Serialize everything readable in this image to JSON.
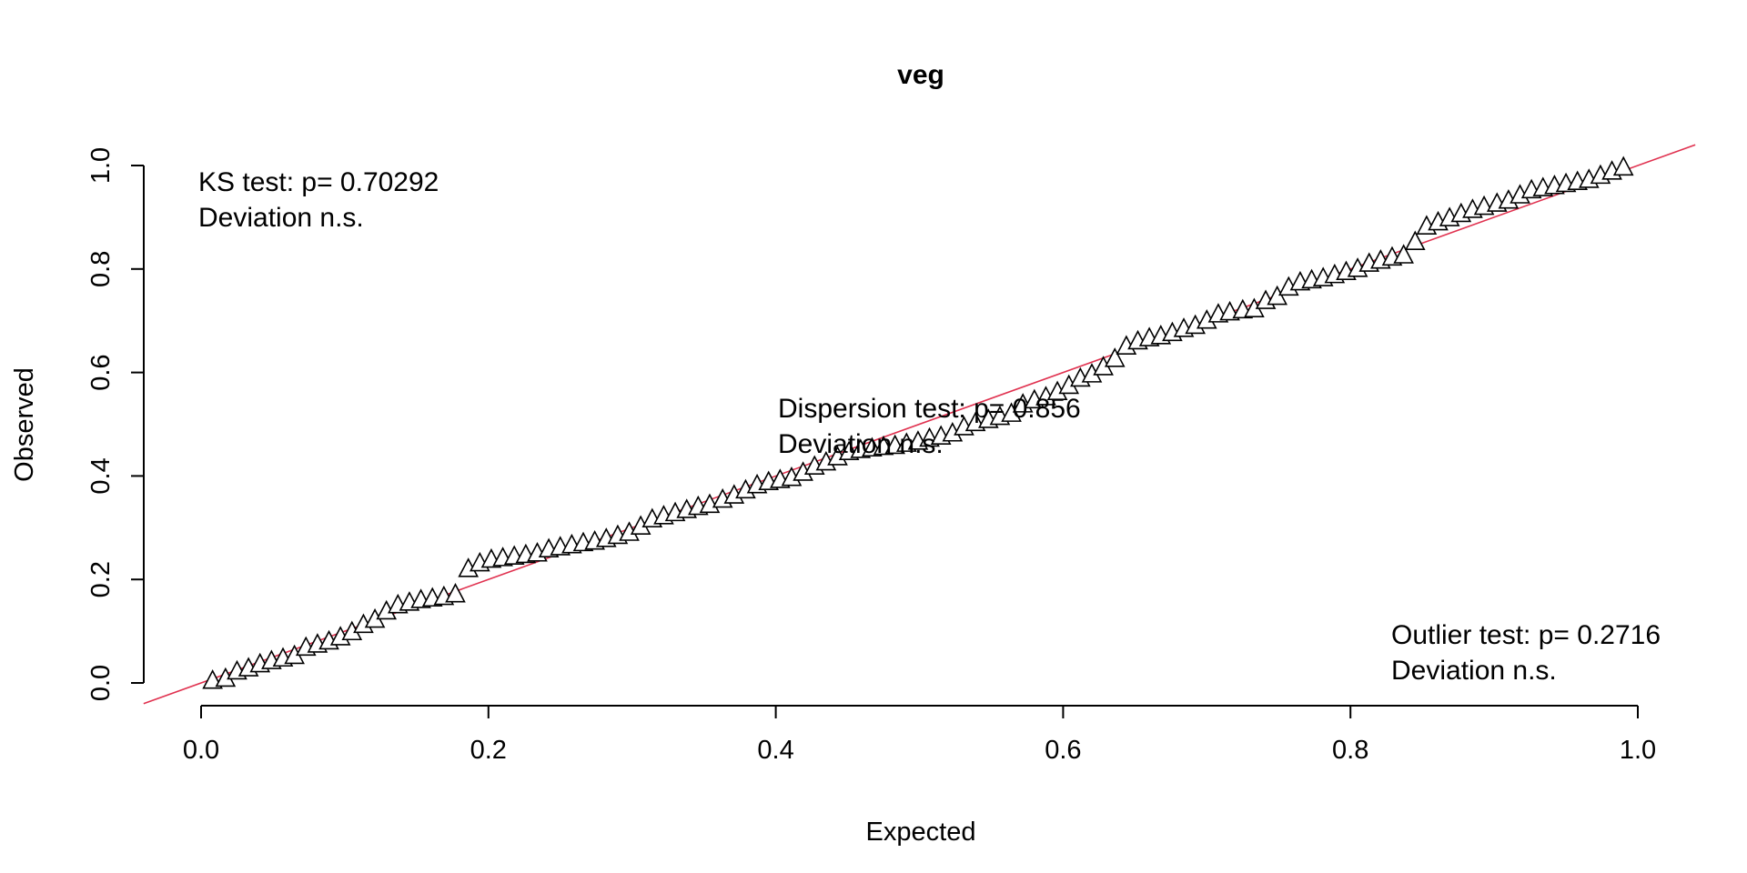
{
  "chart_data": {
    "type": "scatter",
    "title": "veg",
    "xlabel": "Expected",
    "ylabel": "Observed",
    "xlim": [
      0,
      1
    ],
    "ylim": [
      0,
      1
    ],
    "xticks": [
      "0.0",
      "0.2",
      "0.4",
      "0.6",
      "0.8",
      "1.0"
    ],
    "yticks": [
      "0.0",
      "0.2",
      "0.4",
      "0.6",
      "0.8",
      "1.0"
    ],
    "reference_line": {
      "slope": 1,
      "intercept": 0,
      "color": "#e0314f"
    },
    "marker": "triangle-open",
    "annotations": {
      "ks": {
        "line1": "KS test: p= 0.70292",
        "line2": "Deviation  n.s."
      },
      "dispersion": {
        "line1": "Dispersion test: p= 0.856",
        "line2": "Deviation  n.s."
      },
      "outlier": {
        "line1": "Outlier test: p= 0.2716",
        "line2": "Deviation  n.s."
      }
    },
    "points": [
      [
        0.008,
        0.004
      ],
      [
        0.017,
        0.008
      ],
      [
        0.025,
        0.022
      ],
      [
        0.033,
        0.028
      ],
      [
        0.041,
        0.036
      ],
      [
        0.049,
        0.042
      ],
      [
        0.057,
        0.047
      ],
      [
        0.065,
        0.052
      ],
      [
        0.073,
        0.068
      ],
      [
        0.081,
        0.074
      ],
      [
        0.089,
        0.08
      ],
      [
        0.097,
        0.088
      ],
      [
        0.105,
        0.098
      ],
      [
        0.113,
        0.112
      ],
      [
        0.121,
        0.122
      ],
      [
        0.129,
        0.138
      ],
      [
        0.137,
        0.15
      ],
      [
        0.145,
        0.155
      ],
      [
        0.153,
        0.16
      ],
      [
        0.161,
        0.163
      ],
      [
        0.169,
        0.166
      ],
      [
        0.177,
        0.171
      ],
      [
        0.186,
        0.22
      ],
      [
        0.194,
        0.231
      ],
      [
        0.202,
        0.238
      ],
      [
        0.21,
        0.241
      ],
      [
        0.218,
        0.244
      ],
      [
        0.226,
        0.247
      ],
      [
        0.234,
        0.25
      ],
      [
        0.242,
        0.258
      ],
      [
        0.25,
        0.262
      ],
      [
        0.258,
        0.266
      ],
      [
        0.266,
        0.27
      ],
      [
        0.274,
        0.273
      ],
      [
        0.282,
        0.278
      ],
      [
        0.29,
        0.284
      ],
      [
        0.298,
        0.29
      ],
      [
        0.306,
        0.302
      ],
      [
        0.314,
        0.316
      ],
      [
        0.322,
        0.322
      ],
      [
        0.33,
        0.328
      ],
      [
        0.338,
        0.334
      ],
      [
        0.346,
        0.34
      ],
      [
        0.354,
        0.344
      ],
      [
        0.363,
        0.354
      ],
      [
        0.371,
        0.362
      ],
      [
        0.379,
        0.372
      ],
      [
        0.387,
        0.382
      ],
      [
        0.395,
        0.388
      ],
      [
        0.403,
        0.392
      ],
      [
        0.411,
        0.396
      ],
      [
        0.419,
        0.406
      ],
      [
        0.427,
        0.418
      ],
      [
        0.435,
        0.426
      ],
      [
        0.443,
        0.436
      ],
      [
        0.451,
        0.446
      ],
      [
        0.459,
        0.45
      ],
      [
        0.467,
        0.453
      ],
      [
        0.475,
        0.456
      ],
      [
        0.483,
        0.458
      ],
      [
        0.491,
        0.462
      ],
      [
        0.499,
        0.466
      ],
      [
        0.507,
        0.472
      ],
      [
        0.515,
        0.476
      ],
      [
        0.523,
        0.482
      ],
      [
        0.531,
        0.494
      ],
      [
        0.539,
        0.502
      ],
      [
        0.548,
        0.508
      ],
      [
        0.556,
        0.514
      ],
      [
        0.564,
        0.52
      ],
      [
        0.572,
        0.538
      ],
      [
        0.58,
        0.546
      ],
      [
        0.588,
        0.552
      ],
      [
        0.596,
        0.562
      ],
      [
        0.604,
        0.574
      ],
      [
        0.612,
        0.588
      ],
      [
        0.62,
        0.596
      ],
      [
        0.628,
        0.61
      ],
      [
        0.636,
        0.626
      ],
      [
        0.644,
        0.65
      ],
      [
        0.652,
        0.66
      ],
      [
        0.66,
        0.666
      ],
      [
        0.668,
        0.67
      ],
      [
        0.676,
        0.676
      ],
      [
        0.684,
        0.684
      ],
      [
        0.692,
        0.69
      ],
      [
        0.7,
        0.7
      ],
      [
        0.708,
        0.712
      ],
      [
        0.716,
        0.716
      ],
      [
        0.725,
        0.72
      ],
      [
        0.733,
        0.722
      ],
      [
        0.741,
        0.738
      ],
      [
        0.749,
        0.746
      ],
      [
        0.757,
        0.764
      ],
      [
        0.765,
        0.774
      ],
      [
        0.773,
        0.778
      ],
      [
        0.781,
        0.782
      ],
      [
        0.789,
        0.788
      ],
      [
        0.797,
        0.794
      ],
      [
        0.805,
        0.8
      ],
      [
        0.813,
        0.81
      ],
      [
        0.821,
        0.816
      ],
      [
        0.829,
        0.822
      ],
      [
        0.837,
        0.826
      ],
      [
        0.845,
        0.852
      ],
      [
        0.853,
        0.882
      ],
      [
        0.861,
        0.89
      ],
      [
        0.869,
        0.898
      ],
      [
        0.877,
        0.906
      ],
      [
        0.885,
        0.914
      ],
      [
        0.893,
        0.92
      ],
      [
        0.902,
        0.926
      ],
      [
        0.91,
        0.932
      ],
      [
        0.918,
        0.942
      ],
      [
        0.926,
        0.952
      ],
      [
        0.934,
        0.956
      ],
      [
        0.942,
        0.96
      ],
      [
        0.95,
        0.964
      ],
      [
        0.958,
        0.968
      ],
      [
        0.966,
        0.972
      ],
      [
        0.974,
        0.98
      ],
      [
        0.982,
        0.988
      ],
      [
        0.99,
        0.996
      ]
    ]
  }
}
